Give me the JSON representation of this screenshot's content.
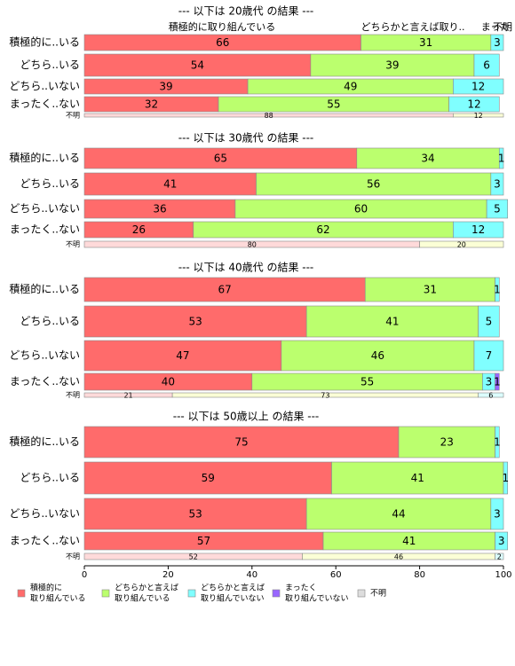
{
  "chart_data": {
    "type": "stacked-barh",
    "xlim": [
      0,
      100
    ],
    "xticks": [
      0,
      20,
      40,
      60,
      80,
      100
    ],
    "header_labels": [
      "積極的に取り組んでいる",
      "どちらかと言えば取り..",
      "まった",
      "不明"
    ],
    "series": [
      {
        "name": [
          "積極的に",
          "取り組んでいる"
        ],
        "color": "#ff6b6b",
        "pale_color": "#ffdada"
      },
      {
        "name": [
          "どちらかと言えば",
          "取り組んでいる"
        ],
        "color": "#bbff6e",
        "pale_color": "#fbffd6"
      },
      {
        "name": [
          "どちらかと言えば",
          "取り組んでいない"
        ],
        "color": "#80ffff",
        "pale_color": "#dcffff"
      },
      {
        "name": [
          "まったく",
          "取り組んでいない"
        ],
        "color": "#9966ff",
        "pale_color": "#e6dcff"
      },
      {
        "name": [
          "不明"
        ],
        "color": "#dddddd",
        "pale_color": "#f2f2f2"
      }
    ],
    "panels": [
      {
        "title": "--- 以下は 20歳代 の結果 ---",
        "rows": [
          {
            "label": "積極的に..いる",
            "values": [
              66,
              31,
              3,
              null
            ]
          },
          {
            "label": "どちら..いる",
            "values": [
              54,
              39,
              6,
              null
            ]
          },
          {
            "label": "どちら..いない",
            "values": [
              39,
              49,
              12,
              null
            ]
          },
          {
            "label": "まったく..ない",
            "values": [
              32,
              55,
              12,
              null
            ]
          }
        ],
        "unknown": {
          "label": "不明",
          "values": [
            88,
            12
          ]
        }
      },
      {
        "title": "--- 以下は 30歳代 の結果 ---",
        "rows": [
          {
            "label": "積極的に..いる",
            "values": [
              65,
              34,
              1,
              null
            ]
          },
          {
            "label": "どちら..いる",
            "values": [
              41,
              56,
              3,
              null
            ]
          },
          {
            "label": "どちら..いない",
            "values": [
              36,
              60,
              5,
              null
            ]
          },
          {
            "label": "まったく..ない",
            "values": [
              26,
              62,
              12,
              null
            ]
          }
        ],
        "unknown": {
          "label": "不明",
          "values": [
            80,
            20
          ]
        }
      },
      {
        "title": "--- 以下は 40歳代 の結果 ---",
        "rows": [
          {
            "label": "積極的に..いる",
            "values": [
              67,
              31,
              1,
              null
            ]
          },
          {
            "label": "どちら..いる",
            "values": [
              53,
              41,
              5,
              null
            ]
          },
          {
            "label": "どちら..いない",
            "values": [
              47,
              46,
              7,
              null
            ]
          },
          {
            "label": "まったく..ない",
            "values": [
              40,
              55,
              3,
              1
            ]
          }
        ],
        "unknown": {
          "label": "不明",
          "values": [
            21,
            73,
            6
          ]
        }
      },
      {
        "title": "--- 以下は 50歳以上 の結果 ---",
        "rows": [
          {
            "label": "積極的に..いる",
            "values": [
              75,
              23,
              1,
              null
            ]
          },
          {
            "label": "どちら..いる",
            "values": [
              59,
              41,
              1,
              null
            ]
          },
          {
            "label": "どちら..いない",
            "values": [
              53,
              44,
              3,
              null
            ]
          },
          {
            "label": "まったく..ない",
            "values": [
              57,
              41,
              3,
              null
            ]
          }
        ],
        "unknown": {
          "label": "不明",
          "values": [
            52,
            46,
            2
          ]
        }
      }
    ]
  }
}
